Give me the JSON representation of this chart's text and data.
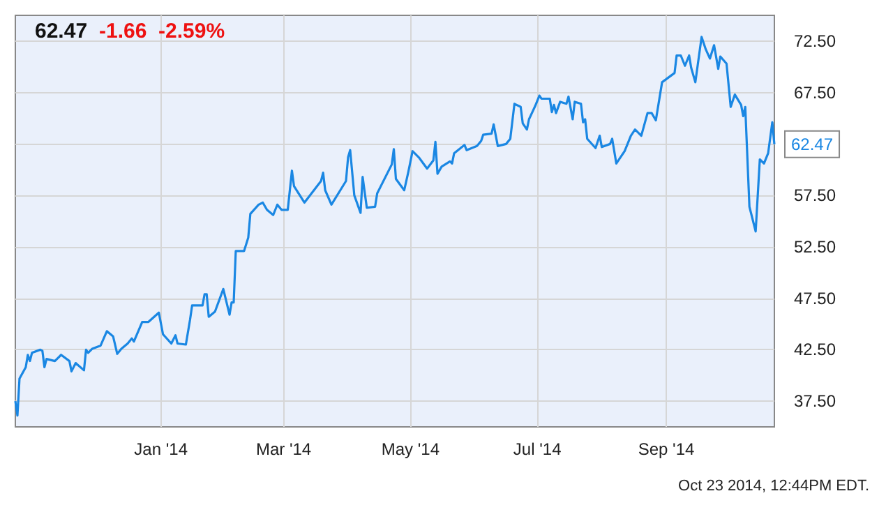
{
  "chart_data": {
    "type": "line",
    "title": "62.47",
    "subtitle": "-1.66  -2.59%",
    "annotations": [
      {
        "text": "62.47",
        "x": "2014-10-23",
        "y": 62.47
      },
      "Oct 23 2014, 12:44PM EDT."
    ],
    "x": [
      "2013-10-23",
      "2013-10-24",
      "2013-10-25",
      "2013-10-28",
      "2013-10-29",
      "2013-10-30",
      "2013-10-31",
      "2013-11-04",
      "2013-11-05",
      "2013-11-06",
      "2013-11-07",
      "2013-11-11",
      "2013-11-14",
      "2013-11-18",
      "2013-11-19",
      "2013-11-21",
      "2013-11-25",
      "2013-11-26",
      "2013-11-27",
      "2013-11-29",
      "2013-12-03",
      "2013-12-06",
      "2013-12-09",
      "2013-12-11",
      "2013-12-13",
      "2013-12-16",
      "2013-12-18",
      "2013-12-19",
      "2013-12-23",
      "2013-12-26",
      "2013-12-31",
      "2014-01-02",
      "2014-01-06",
      "2014-01-08",
      "2014-01-09",
      "2014-01-13",
      "2014-01-15",
      "2014-01-16",
      "2014-01-21",
      "2014-01-22",
      "2014-01-23",
      "2014-01-24",
      "2014-01-27",
      "2014-01-31",
      "2014-02-03",
      "2014-02-04",
      "2014-02-05",
      "2014-02-06",
      "2014-02-10",
      "2014-02-12",
      "2014-02-13",
      "2014-02-17",
      "2014-02-19",
      "2014-02-21",
      "2014-02-24",
      "2014-02-25",
      "2014-02-26",
      "2014-02-28",
      "2014-03-03",
      "2014-03-04",
      "2014-03-05",
      "2014-03-06",
      "2014-03-11",
      "2014-03-19",
      "2014-03-20",
      "2014-03-21",
      "2014-03-24",
      "2014-03-31",
      "2014-04-01",
      "2014-04-02",
      "2014-04-04",
      "2014-04-07",
      "2014-04-08",
      "2014-04-10",
      "2014-04-14",
      "2014-04-15",
      "2014-04-17",
      "2014-04-22",
      "2014-04-23",
      "2014-04-24",
      "2014-04-28",
      "2014-04-30",
      "2014-05-02",
      "2014-05-05",
      "2014-05-09",
      "2014-05-12",
      "2014-05-13",
      "2014-05-14",
      "2014-05-16",
      "2014-05-20",
      "2014-05-21",
      "2014-05-22",
      "2014-05-27",
      "2014-05-28",
      "2014-06-02",
      "2014-06-04",
      "2014-06-05",
      "2014-06-09",
      "2014-06-10",
      "2014-06-12",
      "2014-06-16",
      "2014-06-18",
      "2014-06-20",
      "2014-06-23",
      "2014-06-24",
      "2014-06-26",
      "2014-06-27",
      "2014-06-30",
      "2014-07-02",
      "2014-07-03",
      "2014-07-07",
      "2014-07-08",
      "2014-07-09",
      "2014-07-10",
      "2014-07-12",
      "2014-07-15",
      "2014-07-16",
      "2014-07-18",
      "2014-07-19",
      "2014-07-22",
      "2014-07-23",
      "2014-07-24",
      "2014-07-25",
      "2014-07-29",
      "2014-07-31",
      "2014-08-01",
      "2014-08-05",
      "2014-08-06",
      "2014-08-08",
      "2014-08-12",
      "2014-08-15",
      "2014-08-17",
      "2014-08-20",
      "2014-08-23",
      "2014-08-25",
      "2014-08-27",
      "2014-08-30",
      "2014-09-05",
      "2014-09-06",
      "2014-09-08",
      "2014-09-10",
      "2014-09-12",
      "2014-09-13",
      "2014-09-15",
      "2014-09-18",
      "2014-09-20",
      "2014-09-22",
      "2014-09-24",
      "2014-09-26",
      "2014-09-27",
      "2014-09-30",
      "2014-10-02",
      "2014-10-04",
      "2014-10-07",
      "2014-10-08",
      "2014-10-09",
      "2014-10-11",
      "2014-10-14",
      "2014-10-16",
      "2014-10-18",
      "2014-10-20",
      "2014-10-22",
      "2014-10-23"
    ],
    "series": [
      {
        "color": "#1a87e3",
        "values": [
          37.5,
          36.1,
          39.7,
          40.8,
          42.0,
          41.4,
          42.2,
          42.5,
          42.4,
          40.8,
          41.6,
          41.4,
          42.0,
          41.4,
          40.4,
          41.2,
          40.5,
          42.5,
          42.2,
          42.6,
          42.9,
          44.3,
          43.8,
          42.1,
          42.6,
          43.1,
          43.6,
          43.3,
          45.2,
          45.2,
          46.1,
          44.0,
          43.1,
          43.9,
          43.1,
          43.0,
          45.4,
          46.8,
          46.8,
          47.9,
          47.9,
          45.7,
          46.2,
          48.4,
          45.9,
          47.1,
          47.1,
          52.1,
          52.1,
          53.4,
          55.7,
          56.6,
          56.8,
          56.1,
          55.6,
          56.1,
          56.6,
          56.1,
          56.1,
          58.0,
          59.9,
          58.4,
          56.8,
          58.9,
          59.7,
          58.0,
          56.6,
          58.9,
          61.2,
          61.9,
          57.5,
          55.8,
          59.3,
          56.3,
          56.4,
          57.7,
          58.5,
          60.5,
          62.0,
          59.1,
          58.0,
          59.8,
          61.8,
          61.2,
          60.1,
          60.9,
          62.7,
          59.6,
          60.3,
          60.8,
          60.6,
          61.6,
          62.4,
          61.9,
          62.3,
          62.8,
          63.4,
          63.5,
          64.4,
          62.3,
          62.5,
          63.0,
          66.4,
          66.1,
          64.5,
          63.9,
          64.9,
          66.2,
          67.2,
          66.9,
          66.9,
          65.6,
          66.3,
          65.5,
          66.6,
          66.4,
          67.1,
          64.9,
          66.6,
          66.4,
          64.6,
          64.9,
          63.0,
          62.1,
          63.3,
          62.2,
          62.5,
          63.0,
          60.6,
          61.8,
          63.3,
          63.9,
          63.3,
          65.5,
          65.5,
          64.8,
          68.5,
          69.4,
          71.1,
          71.1,
          70.1,
          71.1,
          69.9,
          68.5,
          72.9,
          71.7,
          70.8,
          72.1,
          69.8,
          71.0,
          70.3,
          66.1,
          67.3,
          66.3,
          65.2,
          66.1,
          56.4,
          54.0,
          61.0,
          60.6,
          61.6,
          64.6,
          62.47
        ]
      }
    ],
    "xlim": [
      "2013-10-23",
      "2014-10-23"
    ],
    "xticks": [
      {
        "value": "2014-01-01",
        "label": "Jan '14"
      },
      {
        "value": "2014-03-01",
        "label": "Mar '14"
      },
      {
        "value": "2014-05-01",
        "label": "May '14"
      },
      {
        "value": "2014-07-01",
        "label": "Jul '14"
      },
      {
        "value": "2014-09-01",
        "label": "Sep '14"
      }
    ],
    "ylim": [
      35,
      75
    ],
    "yticks": [
      {
        "value": 37.5,
        "label": "37.50"
      },
      {
        "value": 42.5,
        "label": "42.50"
      },
      {
        "value": 47.5,
        "label": "47.50"
      },
      {
        "value": 52.5,
        "label": "52.50"
      },
      {
        "value": 57.5,
        "label": "57.50"
      },
      {
        "value": 62.5,
        "label": null
      },
      {
        "value": 67.5,
        "label": "67.50"
      },
      {
        "value": 72.5,
        "label": "72.50"
      }
    ],
    "grid": true,
    "marker": "none",
    "line_style": "solid"
  }
}
